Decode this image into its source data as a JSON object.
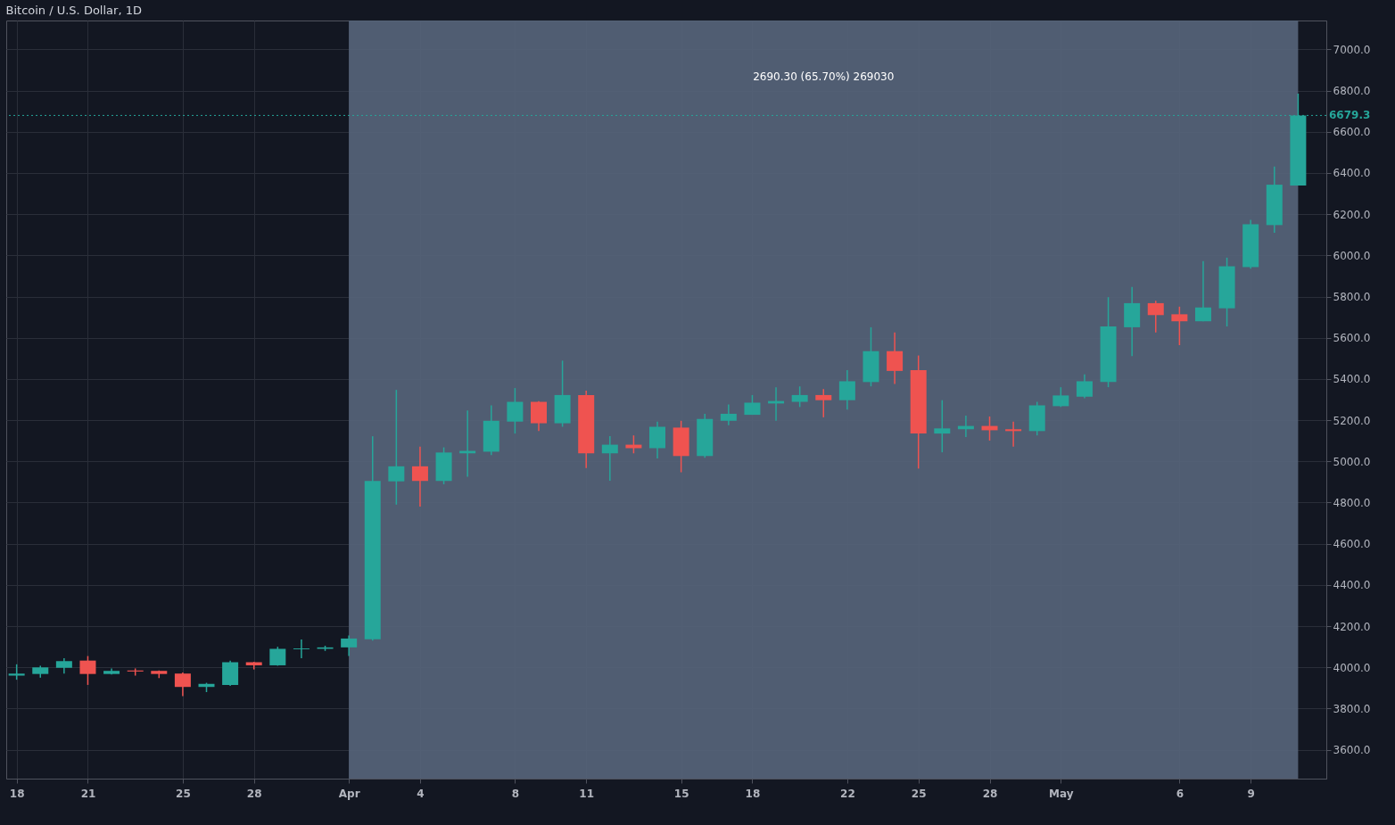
{
  "chart_data": {
    "type": "candlestick",
    "title": "Bitcoin / U.S. Dollar, 1D",
    "x": [
      "--03-18",
      "--03-19",
      "--03-20",
      "--03-21",
      "--03-22",
      "--03-23",
      "--03-24",
      "--03-25",
      "--03-26",
      "--03-27",
      "--03-28",
      "--03-29",
      "--03-30",
      "--03-31",
      "--04-01",
      "--04-02",
      "--04-03",
      "--04-04",
      "--04-05",
      "--04-06",
      "--04-07",
      "--04-08",
      "--04-09",
      "--04-10",
      "--04-11",
      "--04-12",
      "--04-13",
      "--04-14",
      "--04-15",
      "--04-16",
      "--04-17",
      "--04-18",
      "--04-19",
      "--04-20",
      "--04-21",
      "--04-22",
      "--04-23",
      "--04-24",
      "--04-25",
      "--04-26",
      "--04-27",
      "--04-28",
      "--04-29",
      "--04-30",
      "--05-01",
      "--05-02",
      "--05-03",
      "--05-04",
      "--05-05",
      "--05-06",
      "--05-07",
      "--05-08",
      "--05-09",
      "--05-10",
      "--05-11"
    ],
    "ohlc": [
      [
        3960,
        4015,
        3940,
        3970
      ],
      [
        3968,
        4008,
        3950,
        4000
      ],
      [
        3998,
        4045,
        3970,
        4030
      ],
      [
        4033,
        4055,
        3915,
        3968
      ],
      [
        3968,
        3995,
        3965,
        3983
      ],
      [
        3985,
        3995,
        3960,
        3980
      ],
      [
        3983,
        3985,
        3948,
        3968
      ],
      [
        3970,
        3975,
        3860,
        3905
      ],
      [
        3905,
        3925,
        3880,
        3920
      ],
      [
        3915,
        4033,
        3910,
        4025
      ],
      [
        4025,
        4027,
        3990,
        4010
      ],
      [
        4010,
        4100,
        4008,
        4090
      ],
      [
        4088,
        4135,
        4045,
        4092
      ],
      [
        4090,
        4105,
        4080,
        4097
      ],
      [
        4097,
        4155,
        4055,
        4140
      ],
      [
        4136,
        5122,
        4130,
        4905
      ],
      [
        4903,
        5347,
        4790,
        4976
      ],
      [
        4976,
        5072,
        4780,
        4905
      ],
      [
        4905,
        5068,
        4889,
        5043
      ],
      [
        5039,
        5247,
        4926,
        5051
      ],
      [
        5047,
        5272,
        5030,
        5197
      ],
      [
        5193,
        5356,
        5135,
        5289
      ],
      [
        5289,
        5292,
        5147,
        5185
      ],
      [
        5185,
        5489,
        5168,
        5322
      ],
      [
        5322,
        5343,
        4968,
        5039
      ],
      [
        5039,
        5122,
        4906,
        5081
      ],
      [
        5081,
        5126,
        5039,
        5064
      ],
      [
        5064,
        5193,
        5014,
        5168
      ],
      [
        5164,
        5197,
        4947,
        5026
      ],
      [
        5026,
        5231,
        5018,
        5206
      ],
      [
        5197,
        5276,
        5176,
        5231
      ],
      [
        5226,
        5322,
        5226,
        5285
      ],
      [
        5281,
        5360,
        5197,
        5293
      ],
      [
        5289,
        5364,
        5264,
        5322
      ],
      [
        5322,
        5351,
        5214,
        5297
      ],
      [
        5297,
        5443,
        5251,
        5389
      ],
      [
        5385,
        5651,
        5364,
        5535
      ],
      [
        5535,
        5626,
        5376,
        5439
      ],
      [
        5443,
        5514,
        4965,
        5135
      ],
      [
        5135,
        5297,
        5044,
        5160
      ],
      [
        5156,
        5222,
        5118,
        5172
      ],
      [
        5172,
        5218,
        5101,
        5151
      ],
      [
        5156,
        5193,
        5072,
        5147
      ],
      [
        5147,
        5289,
        5126,
        5272
      ],
      [
        5268,
        5360,
        5264,
        5320
      ],
      [
        5314,
        5422,
        5306,
        5389
      ],
      [
        5385,
        5797,
        5360,
        5655
      ],
      [
        5651,
        5847,
        5511,
        5768
      ],
      [
        5768,
        5780,
        5626,
        5710
      ],
      [
        5714,
        5751,
        5564,
        5680
      ],
      [
        5680,
        5972,
        5680,
        5747
      ],
      [
        5743,
        5989,
        5655,
        5947
      ],
      [
        5943,
        6172,
        5935,
        6151
      ],
      [
        6147,
        6431,
        6110,
        6343
      ],
      [
        6339,
        6785,
        6339,
        6679.3
      ]
    ],
    "colors": [
      "#26a69a",
      "#26a69a",
      "#26a69a",
      "#ef5350",
      "#26a69a",
      "#ef5350",
      "#ef5350",
      "#ef5350",
      "#26a69a",
      "#26a69a",
      "#ef5350",
      "#26a69a",
      "#26a69a",
      "#26a69a",
      "#26a69a",
      "#26a69a",
      "#26a69a",
      "#ef5350",
      "#26a69a",
      "#26a69a",
      "#26a69a",
      "#26a69a",
      "#ef5350",
      "#26a69a",
      "#ef5350",
      "#26a69a",
      "#ef5350",
      "#26a69a",
      "#ef5350",
      "#26a69a",
      "#26a69a",
      "#26a69a",
      "#26a69a",
      "#26a69a",
      "#ef5350",
      "#26a69a",
      "#26a69a",
      "#ef5350",
      "#ef5350",
      "#26a69a",
      "#26a69a",
      "#ef5350",
      "#ef5350",
      "#26a69a",
      "#26a69a",
      "#26a69a",
      "#26a69a",
      "#26a69a",
      "#ef5350",
      "#ef5350",
      "#26a69a",
      "#26a69a",
      "#26a69a",
      "#26a69a",
      "#26a69a"
    ],
    "xlim": [
      "--03-17T18:00",
      "--05-12"
    ],
    "xticks": [
      {
        "value": "--03-18",
        "label": "18"
      },
      {
        "value": "--03-21",
        "label": "21"
      },
      {
        "value": "--03-25",
        "label": "25"
      },
      {
        "value": "--03-28",
        "label": "28"
      },
      {
        "value": "--04-01",
        "label": "Apr"
      },
      {
        "value": "--04-04",
        "label": "4"
      },
      {
        "value": "--04-08",
        "label": "8"
      },
      {
        "value": "--04-11",
        "label": "11"
      },
      {
        "value": "--04-15",
        "label": "15"
      },
      {
        "value": "--04-18",
        "label": "18"
      },
      {
        "value": "--04-22",
        "label": "22"
      },
      {
        "value": "--04-25",
        "label": "25"
      },
      {
        "value": "--04-28",
        "label": "28"
      },
      {
        "value": "--05-01",
        "label": "May"
      },
      {
        "value": "--05-06",
        "label": "6"
      },
      {
        "value": "--05-09",
        "label": "9"
      }
    ],
    "ylim": [
      3460,
      7140
    ],
    "yticks": [
      {
        "value": 3600,
        "label": "3600.0"
      },
      {
        "value": 3800,
        "label": "3800.0"
      },
      {
        "value": 4000,
        "label": "4000.0"
      },
      {
        "value": 4200,
        "label": "4200.0"
      },
      {
        "value": 4400,
        "label": "4400.0"
      },
      {
        "value": 4600,
        "label": "4600.0"
      },
      {
        "value": 4800,
        "label": "4800.0"
      },
      {
        "value": 5000,
        "label": "5000.0"
      },
      {
        "value": 5200,
        "label": "5200.0"
      },
      {
        "value": 5400,
        "label": "5400.0"
      },
      {
        "value": 5600,
        "label": "5600.0"
      },
      {
        "value": 5800,
        "label": "5800.0"
      },
      {
        "value": 6000,
        "label": "6000.0"
      },
      {
        "value": 6200,
        "label": "6200.0"
      },
      {
        "value": 6400,
        "label": "6400.0"
      },
      {
        "value": 6600,
        "label": "6600.0"
      },
      {
        "value": 6800,
        "label": "6800.0"
      },
      {
        "value": 7000,
        "label": "7000.0"
      }
    ],
    "grid": true,
    "bands": [
      {
        "axis": "x",
        "from": "--04-01",
        "to": "--05-11",
        "label": "2690.30 (65.70%) 269030",
        "color": "#566479"
      }
    ],
    "ref_lines": [
      {
        "axis": "y",
        "value": 6679.3,
        "label": "6679.3",
        "color": "#26a69a",
        "line_style": "dotted"
      }
    ]
  }
}
